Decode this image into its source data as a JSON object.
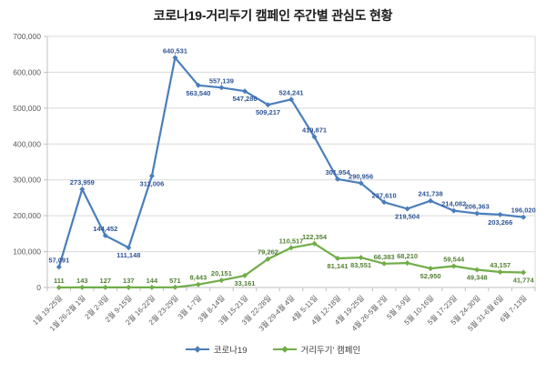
{
  "title": "코로나19-거리두기 캠페인 주간별 관심도 현황",
  "chart_data": {
    "type": "line",
    "title": "코로나19-거리두기 캠페인 주간별 관심도 현황",
    "categories": [
      "1월 19-25일",
      "1월 26-2월 1일",
      "2월 2-8일",
      "2월 9-15일",
      "2월 16-22일",
      "2월 23-29일",
      "3월 1-7일",
      "3월 8-14일",
      "3월 15-21일",
      "3월 22-28일",
      "3월 29-4월 4일",
      "4월 5-11일",
      "4월 12-18일",
      "4월 19-25일",
      "4월 26-5월 2일",
      "5월 3-9일",
      "5월 10-16일",
      "5월 17-23일",
      "5월 24-30일",
      "5월 31-6월 6일",
      "6월 7-13일"
    ],
    "series": [
      {
        "name": "코로나19",
        "color": "#4a7ebb",
        "label_color": "#2f5597",
        "values": [
          57091,
          273959,
          144452,
          111148,
          311006,
          640531,
          563540,
          557139,
          547286,
          509217,
          524241,
          419871,
          301954,
          290956,
          237610,
          219504,
          241738,
          214082,
          206363,
          203266,
          196020
        ],
        "label_pos": [
          "above",
          "above",
          "above",
          "below",
          "below",
          "above",
          "below",
          "above",
          "below",
          "below",
          "above",
          "above",
          "above",
          "above",
          "above",
          "below",
          "above",
          "above",
          "above",
          "below",
          "above"
        ]
      },
      {
        "name": "거리두기' 캠페인",
        "color": "#70ad47",
        "label_color": "#538135",
        "values": [
          111,
          143,
          127,
          137,
          144,
          571,
          8443,
          20151,
          33161,
          79262,
          110517,
          122354,
          81141,
          83551,
          66383,
          68210,
          52950,
          59544,
          49348,
          43157,
          41774
        ],
        "label_pos": [
          "above",
          "above",
          "above",
          "above",
          "above",
          "above",
          "above",
          "above",
          "below",
          "above",
          "above",
          "above",
          "below",
          "below",
          "above",
          "above",
          "below",
          "above",
          "below",
          "above",
          "below"
        ]
      }
    ],
    "ylim": [
      0,
      700000
    ],
    "ytick": 100000,
    "grid": true,
    "legend_position": "bottom",
    "xlabel": "",
    "ylabel": ""
  }
}
